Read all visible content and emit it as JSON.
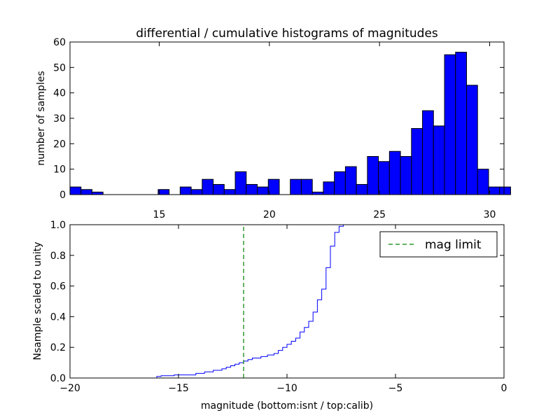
{
  "figure": {
    "title": "differential / cumulative histograms of magnitudes",
    "top_ylabel": "number of samples",
    "bottom_ylabel": "Nsample scaled to unity",
    "bottom_xlabel": "magnitude (bottom:isnt / top:calib)",
    "legend_label": "mag limit"
  },
  "colors": {
    "bar_fill": "#0000ff",
    "step_line": "#0000ff",
    "limit_line": "#008000",
    "axes": "#000000"
  },
  "chart_data": [
    {
      "type": "bar",
      "title": "differential / cumulative histograms of magnitudes",
      "xlabel": "",
      "ylabel": "number of samples",
      "xlim": [
        10.95,
        30.65
      ],
      "ylim": [
        0,
        60
      ],
      "xticks": [
        "15",
        "20",
        "25",
        "30"
      ],
      "yticks": [
        "0",
        "10",
        "20",
        "30",
        "40",
        "50",
        "60"
      ],
      "x_tick_position": "top of lower axes",
      "bin_start": 10.95,
      "bin_width": 0.5,
      "values": [
        3,
        2,
        1,
        0,
        0,
        0,
        0,
        0,
        2,
        0,
        3,
        2,
        6,
        4,
        2,
        9,
        4,
        3,
        6,
        0,
        6,
        6,
        1,
        5,
        9,
        11,
        4,
        15,
        13,
        17,
        15,
        26,
        33,
        27,
        55,
        56,
        43,
        10,
        3,
        3
      ],
      "grid": false
    },
    {
      "type": "line",
      "title": "",
      "xlabel": "magnitude (bottom:isnt / top:calib)",
      "ylabel": "Nsample scaled to unity",
      "xlim": [
        -20,
        0
      ],
      "ylim": [
        0,
        1.0
      ],
      "xticks": [
        "−20",
        "−15",
        "−10",
        "−5",
        "0"
      ],
      "yticks": [
        "0.0",
        "0.2",
        "0.4",
        "0.6",
        "0.8",
        "1.0"
      ],
      "series": [
        {
          "name": "",
          "style": "step",
          "x": [
            -20,
            -16.0,
            -15.8,
            -15.2,
            -14.2,
            -13.8,
            -13.4,
            -13.0,
            -12.8,
            -12.6,
            -12.4,
            -12.2,
            -12.0,
            -11.8,
            -11.6,
            -11.2,
            -10.9,
            -10.6,
            -10.4,
            -10.2,
            -10.0,
            -9.8,
            -9.6,
            -9.4,
            -9.2,
            -9.0,
            -8.8,
            -8.6,
            -8.4,
            -8.2,
            -8.0,
            -7.8,
            -7.6,
            -7.4,
            -7.2,
            -7.0,
            -6.8,
            -6.6,
            -6.4,
            -6.2,
            0
          ],
          "y": [
            0.0,
            0.01,
            0.015,
            0.02,
            0.03,
            0.04,
            0.05,
            0.06,
            0.07,
            0.08,
            0.09,
            0.1,
            0.11,
            0.12,
            0.13,
            0.14,
            0.15,
            0.16,
            0.18,
            0.2,
            0.22,
            0.24,
            0.26,
            0.3,
            0.33,
            0.37,
            0.43,
            0.51,
            0.58,
            0.72,
            0.86,
            0.95,
            0.99,
            1.0,
            1.0,
            1.0,
            1.0,
            1.0,
            1.0,
            1.0,
            1.0
          ]
        },
        {
          "name": "mag limit",
          "style": "dashed-vertical",
          "x": [
            -12,
            -12
          ],
          "y": [
            0,
            1.0
          ]
        }
      ],
      "legend_position": "top-right",
      "grid": false
    }
  ]
}
